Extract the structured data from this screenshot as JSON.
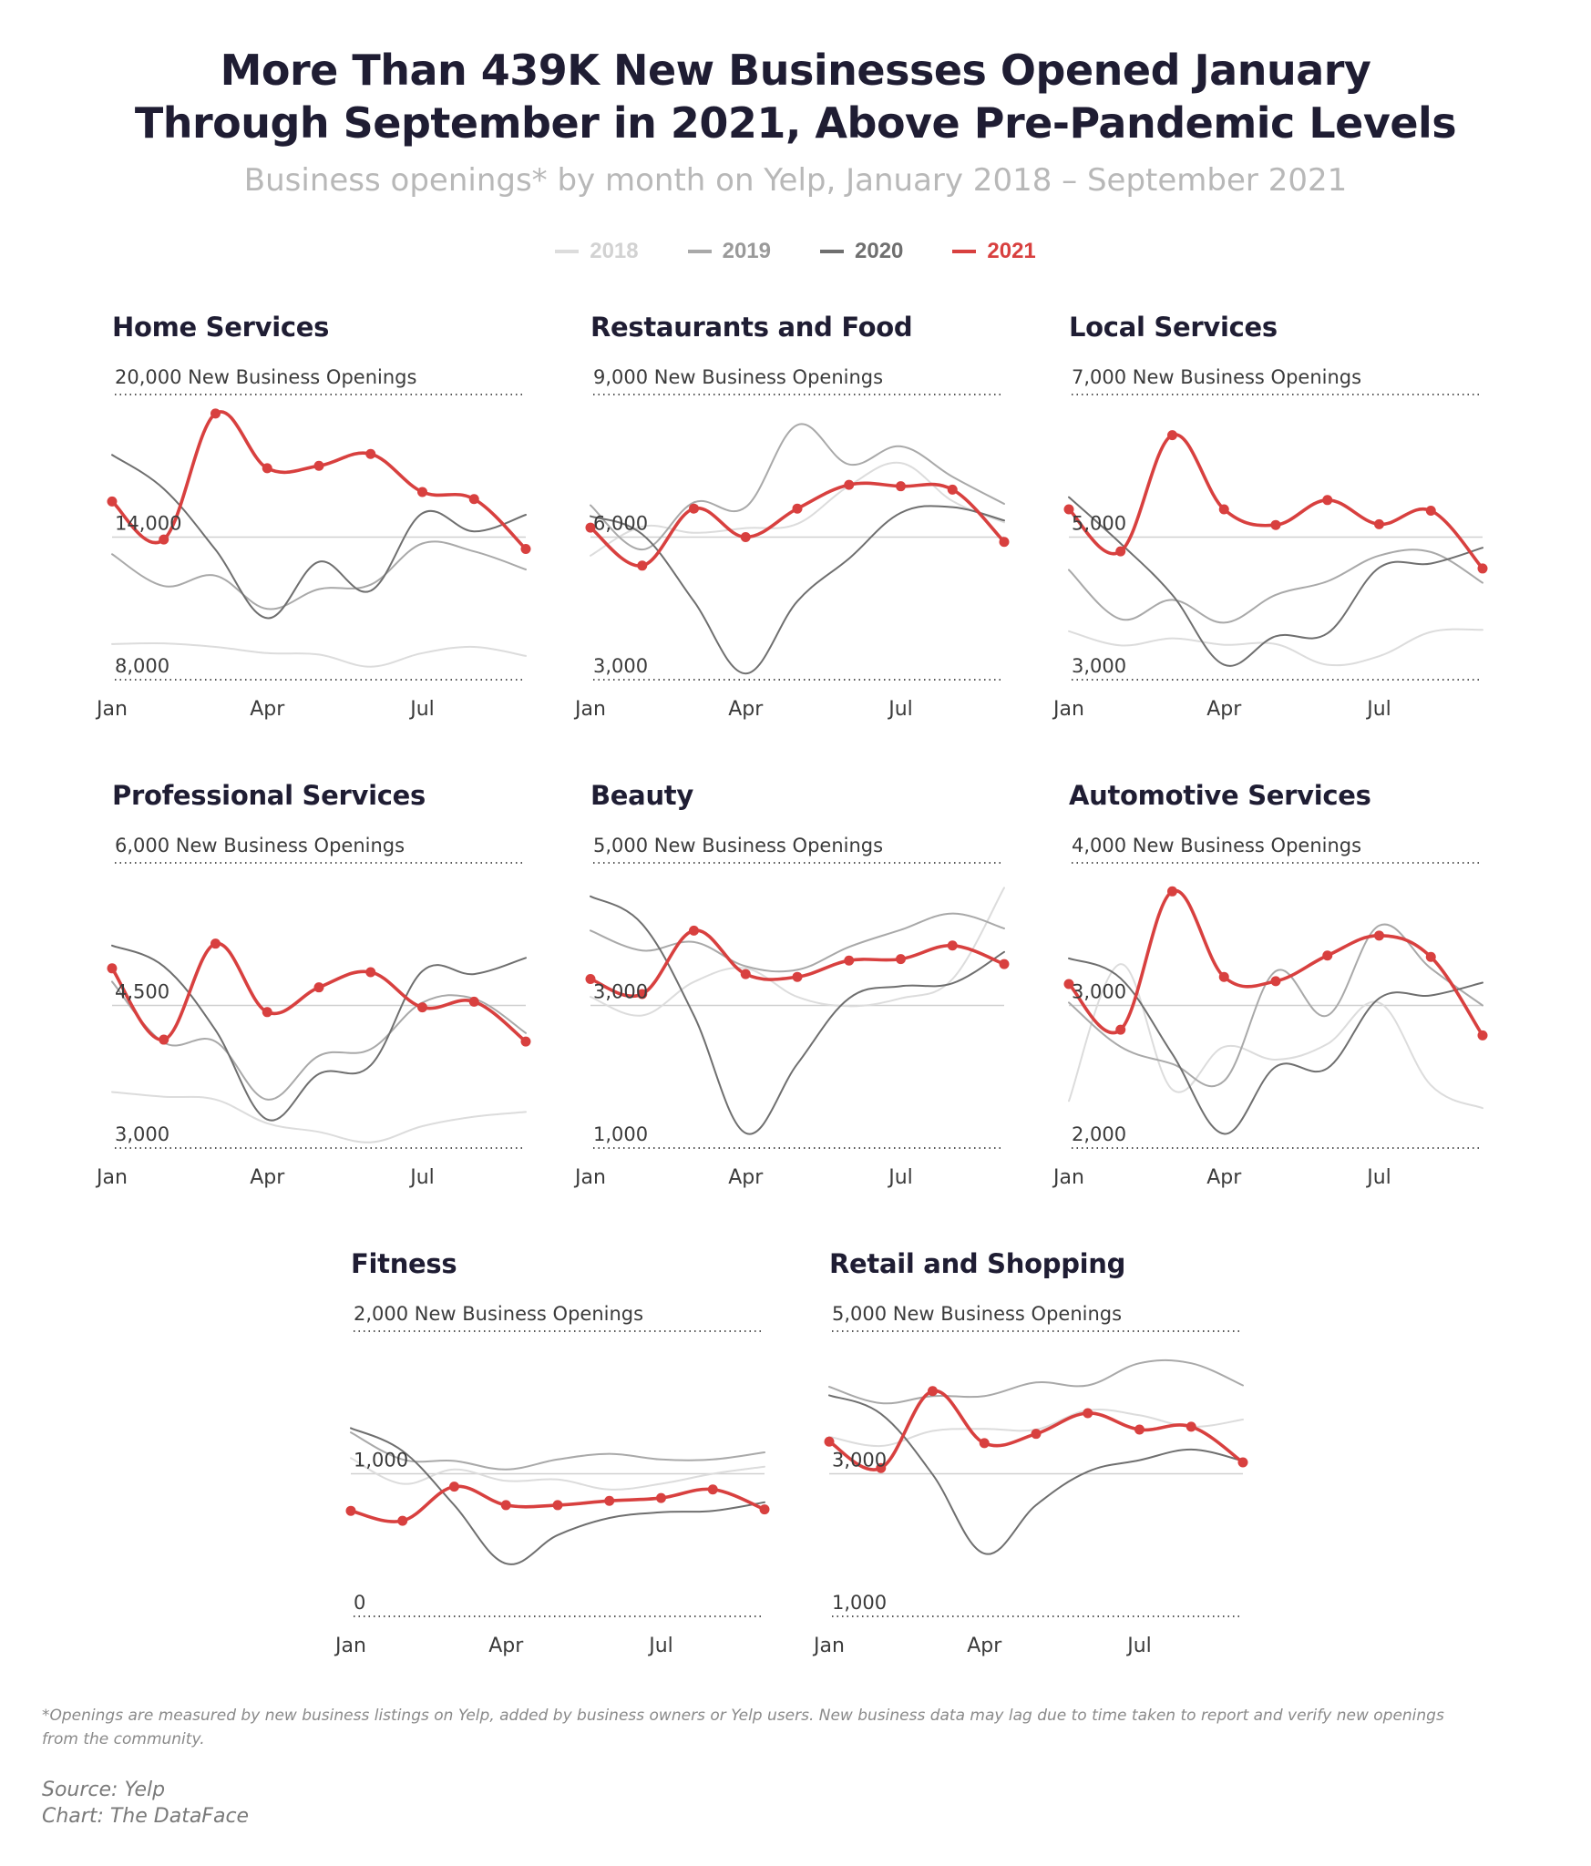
{
  "header": {
    "title_line1": "More Than 439K New Businesses Opened January",
    "title_line2": "Through September in 2021, Above Pre-Pandemic Levels",
    "subtitle": "Business openings* by month on Yelp, January 2018 – September 2021"
  },
  "legend": [
    {
      "label": "2018",
      "color": "#dcdcdc"
    },
    {
      "label": "2019",
      "color": "#a9a9a9"
    },
    {
      "label": "2020",
      "color": "#6f6f6f"
    },
    {
      "label": "2021",
      "color": "#d8403f"
    }
  ],
  "footer": {
    "footnote": "*Openings are measured by new business listings on Yelp, added by business owners or Yelp users. New business data may lag due to time taken to report and verify new openings from the community.",
    "source": "Source: Yelp",
    "credit": "Chart: The DataFace"
  },
  "chart_data": [
    {
      "type": "line",
      "title": "Home Services",
      "top_label": "20,000 New Business Openings",
      "mid_label": "14,000",
      "bottom_label": "8,000",
      "ylim": [
        8000,
        20000
      ],
      "reference_line": 14000,
      "x": [
        "Jan",
        "Feb",
        "Mar",
        "Apr",
        "May",
        "Jun",
        "Jul",
        "Aug",
        "Sep"
      ],
      "x_tick_labels": [
        "Jan",
        "Apr",
        "Jul"
      ],
      "series": [
        {
          "name": "2018",
          "values": [
            9500,
            9530,
            9380,
            9120,
            9060,
            8550,
            9120,
            9380,
            9000
          ]
        },
        {
          "name": "2019",
          "values": [
            13280,
            11940,
            12380,
            10980,
            11810,
            12000,
            13730,
            13400,
            12640
          ]
        },
        {
          "name": "2020",
          "values": [
            17460,
            16030,
            13470,
            10590,
            12960,
            11740,
            15000,
            14240,
            14940
          ]
        },
        {
          "name": "2021",
          "values": [
            15500,
            13900,
            19200,
            16900,
            17000,
            17500,
            15900,
            15600,
            13500
          ]
        }
      ]
    },
    {
      "type": "line",
      "title": "Restaurants and Food",
      "top_label": "9,000 New Business Openings",
      "mid_label": "6,000",
      "bottom_label": "3,000",
      "ylim": [
        3000,
        9000
      ],
      "reference_line": 6000,
      "x": [
        "Jan",
        "Feb",
        "Mar",
        "Apr",
        "May",
        "Jun",
        "Jul",
        "Aug",
        "Sep"
      ],
      "x_tick_labels": [
        "Jan",
        "Apr",
        "Jul"
      ],
      "series": [
        {
          "name": "2018",
          "values": [
            5610,
            6220,
            6090,
            6190,
            6280,
            7080,
            7560,
            6760,
            6310
          ]
        },
        {
          "name": "2019",
          "values": [
            6670,
            5740,
            6730,
            6630,
            8360,
            7530,
            7910,
            7270,
            6700
          ]
        },
        {
          "name": "2020",
          "values": [
            6440,
            6060,
            4650,
            3130,
            4650,
            5550,
            6510,
            6630,
            6350
          ]
        },
        {
          "name": "2021",
          "values": [
            6200,
            5400,
            6600,
            6000,
            6600,
            7100,
            7070,
            7000,
            5900
          ]
        }
      ]
    },
    {
      "type": "line",
      "title": "Local Services",
      "top_label": "7,000 New Business Openings",
      "mid_label": "5,000",
      "bottom_label": "3,000",
      "ylim": [
        3000,
        7000
      ],
      "reference_line": 5000,
      "x": [
        "Jan",
        "Feb",
        "Mar",
        "Apr",
        "May",
        "Jun",
        "Jul",
        "Aug",
        "Sep"
      ],
      "x_tick_labels": [
        "Jan",
        "Apr",
        "Jul"
      ],
      "series": [
        {
          "name": "2018",
          "values": [
            3680,
            3480,
            3580,
            3490,
            3500,
            3210,
            3330,
            3670,
            3700
          ]
        },
        {
          "name": "2019",
          "values": [
            4540,
            3850,
            4120,
            3800,
            4190,
            4380,
            4740,
            4790,
            4360
          ]
        },
        {
          "name": "2020",
          "values": [
            5560,
            4910,
            4190,
            3210,
            3610,
            3650,
            4570,
            4630,
            4850
          ]
        },
        {
          "name": "2021",
          "values": [
            5390,
            4800,
            6430,
            5390,
            5170,
            5520,
            5180,
            5370,
            4560
          ]
        }
      ]
    },
    {
      "type": "line",
      "title": "Professional Services",
      "top_label": "6,000 New Business Openings",
      "mid_label": "4,500",
      "bottom_label": "3,000",
      "ylim": [
        3000,
        6000
      ],
      "reference_line": 4500,
      "x": [
        "Jan",
        "Feb",
        "Mar",
        "Apr",
        "May",
        "Jun",
        "Jul",
        "Aug",
        "Sep"
      ],
      "x_tick_labels": [
        "Jan",
        "Apr",
        "Jul"
      ],
      "series": [
        {
          "name": "2018",
          "values": [
            3590,
            3540,
            3510,
            3260,
            3170,
            3060,
            3230,
            3330,
            3380
          ]
        },
        {
          "name": "2019",
          "values": [
            4750,
            4110,
            4120,
            3510,
            3970,
            4040,
            4530,
            4570,
            4210
          ]
        },
        {
          "name": "2020",
          "values": [
            5130,
            4910,
            4240,
            3300,
            3780,
            3870,
            4860,
            4830,
            5000
          ]
        },
        {
          "name": "2021",
          "values": [
            4890,
            4140,
            5150,
            4430,
            4690,
            4850,
            4480,
            4540,
            4120
          ]
        }
      ]
    },
    {
      "type": "line",
      "title": "Beauty",
      "top_label": "5,000 New Business Openings",
      "mid_label": "3,000",
      "bottom_label": "1,000",
      "ylim": [
        1000,
        5000
      ],
      "reference_line": 3000,
      "x": [
        "Jan",
        "Feb",
        "Mar",
        "Apr",
        "May",
        "Jun",
        "Jul",
        "Aug",
        "Sep"
      ],
      "x_tick_labels": [
        "Jan",
        "Apr",
        "Jul"
      ],
      "series": [
        {
          "name": "2018",
          "values": [
            3120,
            2860,
            3330,
            3520,
            3120,
            2990,
            3100,
            3370,
            4650
          ]
        },
        {
          "name": "2019",
          "values": [
            4050,
            3770,
            3890,
            3550,
            3500,
            3820,
            4060,
            4290,
            4080
          ]
        },
        {
          "name": "2020",
          "values": [
            4530,
            4140,
            2860,
            1210,
            2180,
            3100,
            3270,
            3310,
            3750
          ]
        },
        {
          "name": "2021",
          "values": [
            3370,
            3160,
            4050,
            3440,
            3400,
            3630,
            3650,
            3840,
            3580
          ]
        }
      ]
    },
    {
      "type": "line",
      "title": "Automotive Services",
      "top_label": "4,000 New Business Openings",
      "mid_label": "3,000",
      "bottom_label": "2,000",
      "ylim": [
        2000,
        4000
      ],
      "reference_line": 3000,
      "x": [
        "Jan",
        "Feb",
        "Mar",
        "Apr",
        "May",
        "Jun",
        "Jul",
        "Aug",
        "Sep"
      ],
      "x_tick_labels": [
        "Jan",
        "Apr",
        "Jul"
      ],
      "series": [
        {
          "name": "2018",
          "values": [
            2330,
            3290,
            2410,
            2710,
            2620,
            2730,
            3020,
            2440,
            2280
          ]
        },
        {
          "name": "2019",
          "values": [
            3020,
            2710,
            2590,
            2470,
            3240,
            2930,
            3560,
            3260,
            3000
          ]
        },
        {
          "name": "2020",
          "values": [
            3330,
            3190,
            2660,
            2100,
            2570,
            2560,
            3050,
            3070,
            3160
          ]
        },
        {
          "name": "2021",
          "values": [
            3150,
            2830,
            3800,
            3200,
            3170,
            3350,
            3490,
            3340,
            2790
          ]
        }
      ]
    },
    {
      "type": "line",
      "title": "Fitness",
      "top_label": "2,000 New Business Openings",
      "mid_label": "1,000",
      "bottom_label": "0",
      "ylim": [
        0,
        2000
      ],
      "reference_line": 1000,
      "x": [
        "Jan",
        "Feb",
        "Mar",
        "Apr",
        "May",
        "Jun",
        "Jul",
        "Aug",
        "Sep"
      ],
      "x_tick_labels": [
        "Jan",
        "Apr",
        "Jul"
      ],
      "series": [
        {
          "name": "2018",
          "values": [
            1110,
            930,
            1030,
            950,
            960,
            890,
            930,
            1000,
            1050
          ]
        },
        {
          "name": "2019",
          "values": [
            1290,
            1100,
            1090,
            1030,
            1100,
            1140,
            1100,
            1100,
            1150
          ]
        },
        {
          "name": "2020",
          "values": [
            1320,
            1160,
            780,
            370,
            570,
            690,
            730,
            740,
            800
          ]
        },
        {
          "name": "2021",
          "values": [
            740,
            670,
            910,
            780,
            780,
            810,
            830,
            890,
            750
          ]
        }
      ]
    },
    {
      "type": "line",
      "title": "Retail and Shopping",
      "top_label": "5,000 New Business Openings",
      "mid_label": "3,000",
      "bottom_label": "1,000",
      "ylim": [
        1000,
        5000
      ],
      "reference_line": 3000,
      "x": [
        "Jan",
        "Feb",
        "Mar",
        "Apr",
        "May",
        "Jun",
        "Jul",
        "Aug",
        "Sep"
      ],
      "x_tick_labels": [
        "Jan",
        "Apr",
        "Jul"
      ],
      "series": [
        {
          "name": "2018",
          "values": [
            3520,
            3390,
            3600,
            3630,
            3620,
            3890,
            3820,
            3660,
            3760
          ]
        },
        {
          "name": "2019",
          "values": [
            4220,
            3990,
            4090,
            4090,
            4280,
            4240,
            4550,
            4550,
            4240
          ]
        },
        {
          "name": "2020",
          "values": [
            4100,
            3840,
            2990,
            1880,
            2560,
            3030,
            3190,
            3340,
            3180
          ]
        },
        {
          "name": "2021",
          "values": [
            3450,
            3080,
            4160,
            3430,
            3560,
            3850,
            3620,
            3660,
            3160
          ]
        }
      ]
    }
  ]
}
